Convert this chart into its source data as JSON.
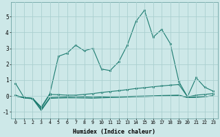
{
  "xlabel": "Humidex (Indice chaleur)",
  "background_color": "#cde8e8",
  "grid_color": "#aacfcf",
  "line_color": "#1a7a6e",
  "xlim": [
    -0.5,
    23.5
  ],
  "ylim": [
    -1.4,
    5.9
  ],
  "x": [
    0,
    1,
    2,
    3,
    4,
    5,
    6,
    7,
    8,
    9,
    10,
    11,
    12,
    13,
    14,
    15,
    16,
    17,
    18,
    19,
    20,
    21,
    22,
    23
  ],
  "line1": [
    0.8,
    -0.1,
    -0.15,
    -0.7,
    0.15,
    2.5,
    2.7,
    3.2,
    2.85,
    3.0,
    1.7,
    1.6,
    2.15,
    3.2,
    4.7,
    5.4,
    3.7,
    4.2,
    3.3,
    0.9,
    -0.05,
    1.15,
    0.55,
    0.3
  ],
  "line2": [
    0.05,
    -0.1,
    -0.15,
    -0.75,
    0.1,
    0.08,
    0.05,
    0.05,
    0.1,
    0.15,
    0.22,
    0.28,
    0.33,
    0.4,
    0.47,
    0.52,
    0.58,
    0.63,
    0.68,
    0.72,
    -0.05,
    0.05,
    0.1,
    0.15
  ],
  "line3": [
    0.0,
    -0.1,
    -0.15,
    -0.85,
    -0.1,
    -0.08,
    -0.06,
    -0.04,
    -0.06,
    -0.08,
    -0.06,
    -0.04,
    -0.03,
    -0.02,
    -0.01,
    0.0,
    0.01,
    0.03,
    0.04,
    0.05,
    -0.08,
    -0.06,
    -0.03,
    0.0
  ],
  "line4": [
    0.0,
    -0.12,
    -0.18,
    -0.92,
    -0.15,
    -0.13,
    -0.12,
    -0.12,
    -0.13,
    -0.14,
    -0.12,
    -0.1,
    -0.09,
    -0.07,
    -0.05,
    -0.04,
    -0.02,
    0.0,
    0.02,
    0.03,
    -0.1,
    -0.09,
    -0.05,
    0.02
  ]
}
